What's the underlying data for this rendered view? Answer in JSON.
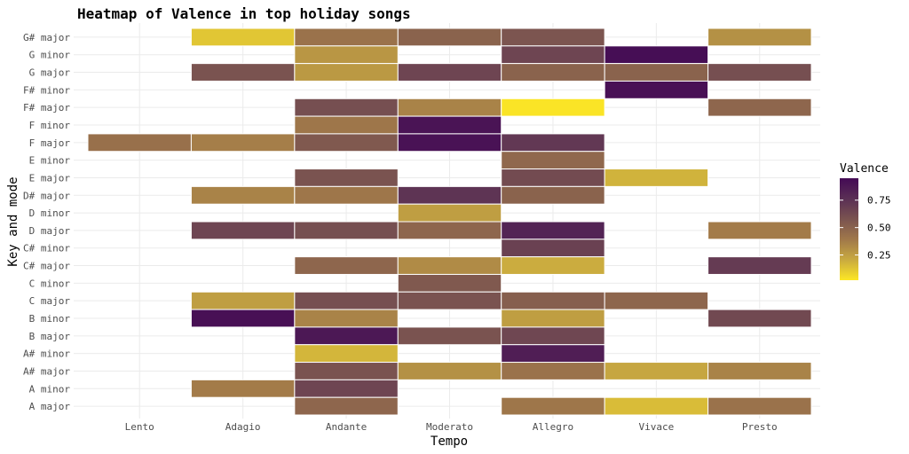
{
  "chart_data": {
    "type": "heatmap",
    "title": "Heatmap of Valence in top holiday songs",
    "xlabel": "Tempo",
    "ylabel": "Key and mode",
    "x_categories": [
      "Lento",
      "Adagio",
      "Andante",
      "Moderato",
      "Allegro",
      "Vivace",
      "Presto"
    ],
    "y_categories": [
      "A major",
      "A minor",
      "A# major",
      "A# minor",
      "B major",
      "B minor",
      "C major",
      "C minor",
      "C# major",
      "C# minor",
      "D major",
      "D minor",
      "D# major",
      "E major",
      "E minor",
      "F major",
      "F minor",
      "F# major",
      "F# minor",
      "G major",
      "G minor",
      "G# major"
    ],
    "cells": [
      {
        "key": "G# major",
        "tempo": "Adagio",
        "value": 0.12
      },
      {
        "key": "G# major",
        "tempo": "Andante",
        "value": 0.42
      },
      {
        "key": "G# major",
        "tempo": "Moderato",
        "value": 0.5
      },
      {
        "key": "G# major",
        "tempo": "Allegro",
        "value": 0.57
      },
      {
        "key": "G# major",
        "tempo": "Presto",
        "value": 0.3
      },
      {
        "key": "G minor",
        "tempo": "Andante",
        "value": 0.28
      },
      {
        "key": "G minor",
        "tempo": "Allegro",
        "value": 0.65
      },
      {
        "key": "G minor",
        "tempo": "Vivace",
        "value": 0.93
      },
      {
        "key": "G major",
        "tempo": "Adagio",
        "value": 0.58
      },
      {
        "key": "G major",
        "tempo": "Andante",
        "value": 0.27
      },
      {
        "key": "G major",
        "tempo": "Moderato",
        "value": 0.65
      },
      {
        "key": "G major",
        "tempo": "Allegro",
        "value": 0.5
      },
      {
        "key": "G major",
        "tempo": "Vivace",
        "value": 0.5
      },
      {
        "key": "G major",
        "tempo": "Presto",
        "value": 0.6
      },
      {
        "key": "F# minor",
        "tempo": "Vivace",
        "value": 0.92
      },
      {
        "key": "F# major",
        "tempo": "Andante",
        "value": 0.6
      },
      {
        "key": "F# major",
        "tempo": "Moderato",
        "value": 0.35
      },
      {
        "key": "F# major",
        "tempo": "Allegro",
        "value": 0.03
      },
      {
        "key": "F# major",
        "tempo": "Presto",
        "value": 0.48
      },
      {
        "key": "F minor",
        "tempo": "Andante",
        "value": 0.4
      },
      {
        "key": "F minor",
        "tempo": "Moderato",
        "value": 0.9
      },
      {
        "key": "F major",
        "tempo": "Lento",
        "value": 0.43
      },
      {
        "key": "F major",
        "tempo": "Adagio",
        "value": 0.37
      },
      {
        "key": "F major",
        "tempo": "Andante",
        "value": 0.55
      },
      {
        "key": "F major",
        "tempo": "Moderato",
        "value": 0.91
      },
      {
        "key": "F major",
        "tempo": "Allegro",
        "value": 0.72
      },
      {
        "key": "E minor",
        "tempo": "Allegro",
        "value": 0.47
      },
      {
        "key": "E major",
        "tempo": "Andante",
        "value": 0.58
      },
      {
        "key": "E major",
        "tempo": "Allegro",
        "value": 0.62
      },
      {
        "key": "E major",
        "tempo": "Vivace",
        "value": 0.18
      },
      {
        "key": "D# major",
        "tempo": "Adagio",
        "value": 0.35
      },
      {
        "key": "D# major",
        "tempo": "Andante",
        "value": 0.4
      },
      {
        "key": "D# major",
        "tempo": "Moderato",
        "value": 0.74
      },
      {
        "key": "D# major",
        "tempo": "Allegro",
        "value": 0.5
      },
      {
        "key": "D minor",
        "tempo": "Moderato",
        "value": 0.25
      },
      {
        "key": "D major",
        "tempo": "Adagio",
        "value": 0.65
      },
      {
        "key": "D major",
        "tempo": "Andante",
        "value": 0.6
      },
      {
        "key": "D major",
        "tempo": "Moderato",
        "value": 0.48
      },
      {
        "key": "D major",
        "tempo": "Allegro",
        "value": 0.82
      },
      {
        "key": "D major",
        "tempo": "Presto",
        "value": 0.38
      },
      {
        "key": "C# minor",
        "tempo": "Allegro",
        "value": 0.67
      },
      {
        "key": "C# major",
        "tempo": "Andante",
        "value": 0.48
      },
      {
        "key": "C# major",
        "tempo": "Moderato",
        "value": 0.32
      },
      {
        "key": "C# major",
        "tempo": "Allegro",
        "value": 0.2
      },
      {
        "key": "C# major",
        "tempo": "Presto",
        "value": 0.7
      },
      {
        "key": "C minor",
        "tempo": "Moderato",
        "value": 0.55
      },
      {
        "key": "C major",
        "tempo": "Adagio",
        "value": 0.25
      },
      {
        "key": "C major",
        "tempo": "Andante",
        "value": 0.6
      },
      {
        "key": "C major",
        "tempo": "Moderato",
        "value": 0.58
      },
      {
        "key": "C major",
        "tempo": "Allegro",
        "value": 0.52
      },
      {
        "key": "C major",
        "tempo": "Vivace",
        "value": 0.48
      },
      {
        "key": "B minor",
        "tempo": "Adagio",
        "value": 0.92
      },
      {
        "key": "B minor",
        "tempo": "Andante",
        "value": 0.35
      },
      {
        "key": "B minor",
        "tempo": "Allegro",
        "value": 0.25
      },
      {
        "key": "B minor",
        "tempo": "Presto",
        "value": 0.63
      },
      {
        "key": "B major",
        "tempo": "Andante",
        "value": 0.88
      },
      {
        "key": "B major",
        "tempo": "Moderato",
        "value": 0.58
      },
      {
        "key": "B major",
        "tempo": "Allegro",
        "value": 0.64
      },
      {
        "key": "A# minor",
        "tempo": "Andante",
        "value": 0.17
      },
      {
        "key": "A# minor",
        "tempo": "Allegro",
        "value": 0.85
      },
      {
        "key": "A# major",
        "tempo": "Andante",
        "value": 0.58
      },
      {
        "key": "A# major",
        "tempo": "Moderato",
        "value": 0.3
      },
      {
        "key": "A# major",
        "tempo": "Allegro",
        "value": 0.42
      },
      {
        "key": "A# major",
        "tempo": "Vivace",
        "value": 0.22
      },
      {
        "key": "A# major",
        "tempo": "Presto",
        "value": 0.35
      },
      {
        "key": "A minor",
        "tempo": "Adagio",
        "value": 0.38
      },
      {
        "key": "A minor",
        "tempo": "Andante",
        "value": 0.65
      },
      {
        "key": "A major",
        "tempo": "Andante",
        "value": 0.48
      },
      {
        "key": "A major",
        "tempo": "Allegro",
        "value": 0.4
      },
      {
        "key": "A major",
        "tempo": "Vivace",
        "value": 0.15
      },
      {
        "key": "A major",
        "tempo": "Presto",
        "value": 0.42
      }
    ],
    "legend": {
      "title": "Valence",
      "ticks": [
        "0.25",
        "0.50",
        "0.75"
      ],
      "tick_values": [
        0.25,
        0.5,
        0.75
      ],
      "range": [
        0.02,
        0.95
      ],
      "placement": "right"
    },
    "colors": {
      "low": "#FDE725",
      "mid": "#9B7346",
      "high": "#440A55",
      "stops": [
        "#FDE725",
        "#C9AA40",
        "#A0784A",
        "#7A5350",
        "#5A2F55",
        "#440A55"
      ],
      "grid": "#EBEBEB",
      "tile_border": "#FFFFFF"
    },
    "grid": true
  }
}
